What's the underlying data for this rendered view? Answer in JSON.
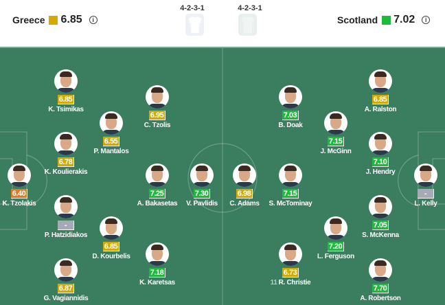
{
  "colors": {
    "gold": "#d4aa00",
    "green": "#1dba3c",
    "orange": "#e6791c",
    "gray": "#a7a9b6",
    "pitch": "#3b7d5f"
  },
  "home": {
    "name": "Greece",
    "rating": "6.85",
    "rating_color": "gold",
    "formation": "4-2-3-1",
    "info_icon": "info-icon"
  },
  "away": {
    "name": "Scotland",
    "rating": "7.02",
    "rating_color": "green",
    "formation": "4-2-3-1",
    "info_icon": "info-icon"
  },
  "players": [
    {
      "name": "K. Tsimikas",
      "rating": "6.85",
      "color": "gold"
    },
    {
      "name": "C. Tzolis",
      "rating": "6.95",
      "color": "gold"
    },
    {
      "name": "P. Mantalos",
      "rating": "6.55",
      "color": "gold"
    },
    {
      "name": "K. Koulierakis",
      "rating": "6.78",
      "color": "gold"
    },
    {
      "name": "K. Tzolakis",
      "rating": "6.40",
      "color": "orange"
    },
    {
      "name": "A. Bakasetas",
      "rating": "7.25",
      "color": "green"
    },
    {
      "name": "V. Pavlidis",
      "rating": "7.30",
      "color": "green"
    },
    {
      "name": "P. Hatzidiakos",
      "rating": "-",
      "color": "gray"
    },
    {
      "name": "D. Kourbelis",
      "rating": "6.85",
      "color": "gold"
    },
    {
      "name": "K. Karetsas",
      "rating": "7.18",
      "color": "green"
    },
    {
      "name": "G. Vagiannidis",
      "rating": "6.87",
      "color": "gold"
    },
    {
      "name": "A. Ralston",
      "rating": "6.85",
      "color": "gold"
    },
    {
      "name": "B. Doak",
      "rating": "7.03",
      "color": "green"
    },
    {
      "name": "J. McGinn",
      "rating": "7.15",
      "color": "green"
    },
    {
      "name": "J. Hendry",
      "rating": "7.10",
      "color": "green"
    },
    {
      "name": "C. Adams",
      "rating": "6.98",
      "color": "gold"
    },
    {
      "name": "S. McTominay",
      "rating": "7.15",
      "color": "green"
    },
    {
      "name": "L. Kelly",
      "rating": "-",
      "color": "gray"
    },
    {
      "name": "S. McKenna",
      "rating": "7.05",
      "color": "green"
    },
    {
      "name": "L. Ferguson",
      "rating": "7.20",
      "color": "green"
    },
    {
      "name": "R. Christie",
      "number": "11",
      "rating": "6.73",
      "color": "gold"
    },
    {
      "name": "A. Robertson",
      "rating": "7.70",
      "color": "green"
    }
  ]
}
